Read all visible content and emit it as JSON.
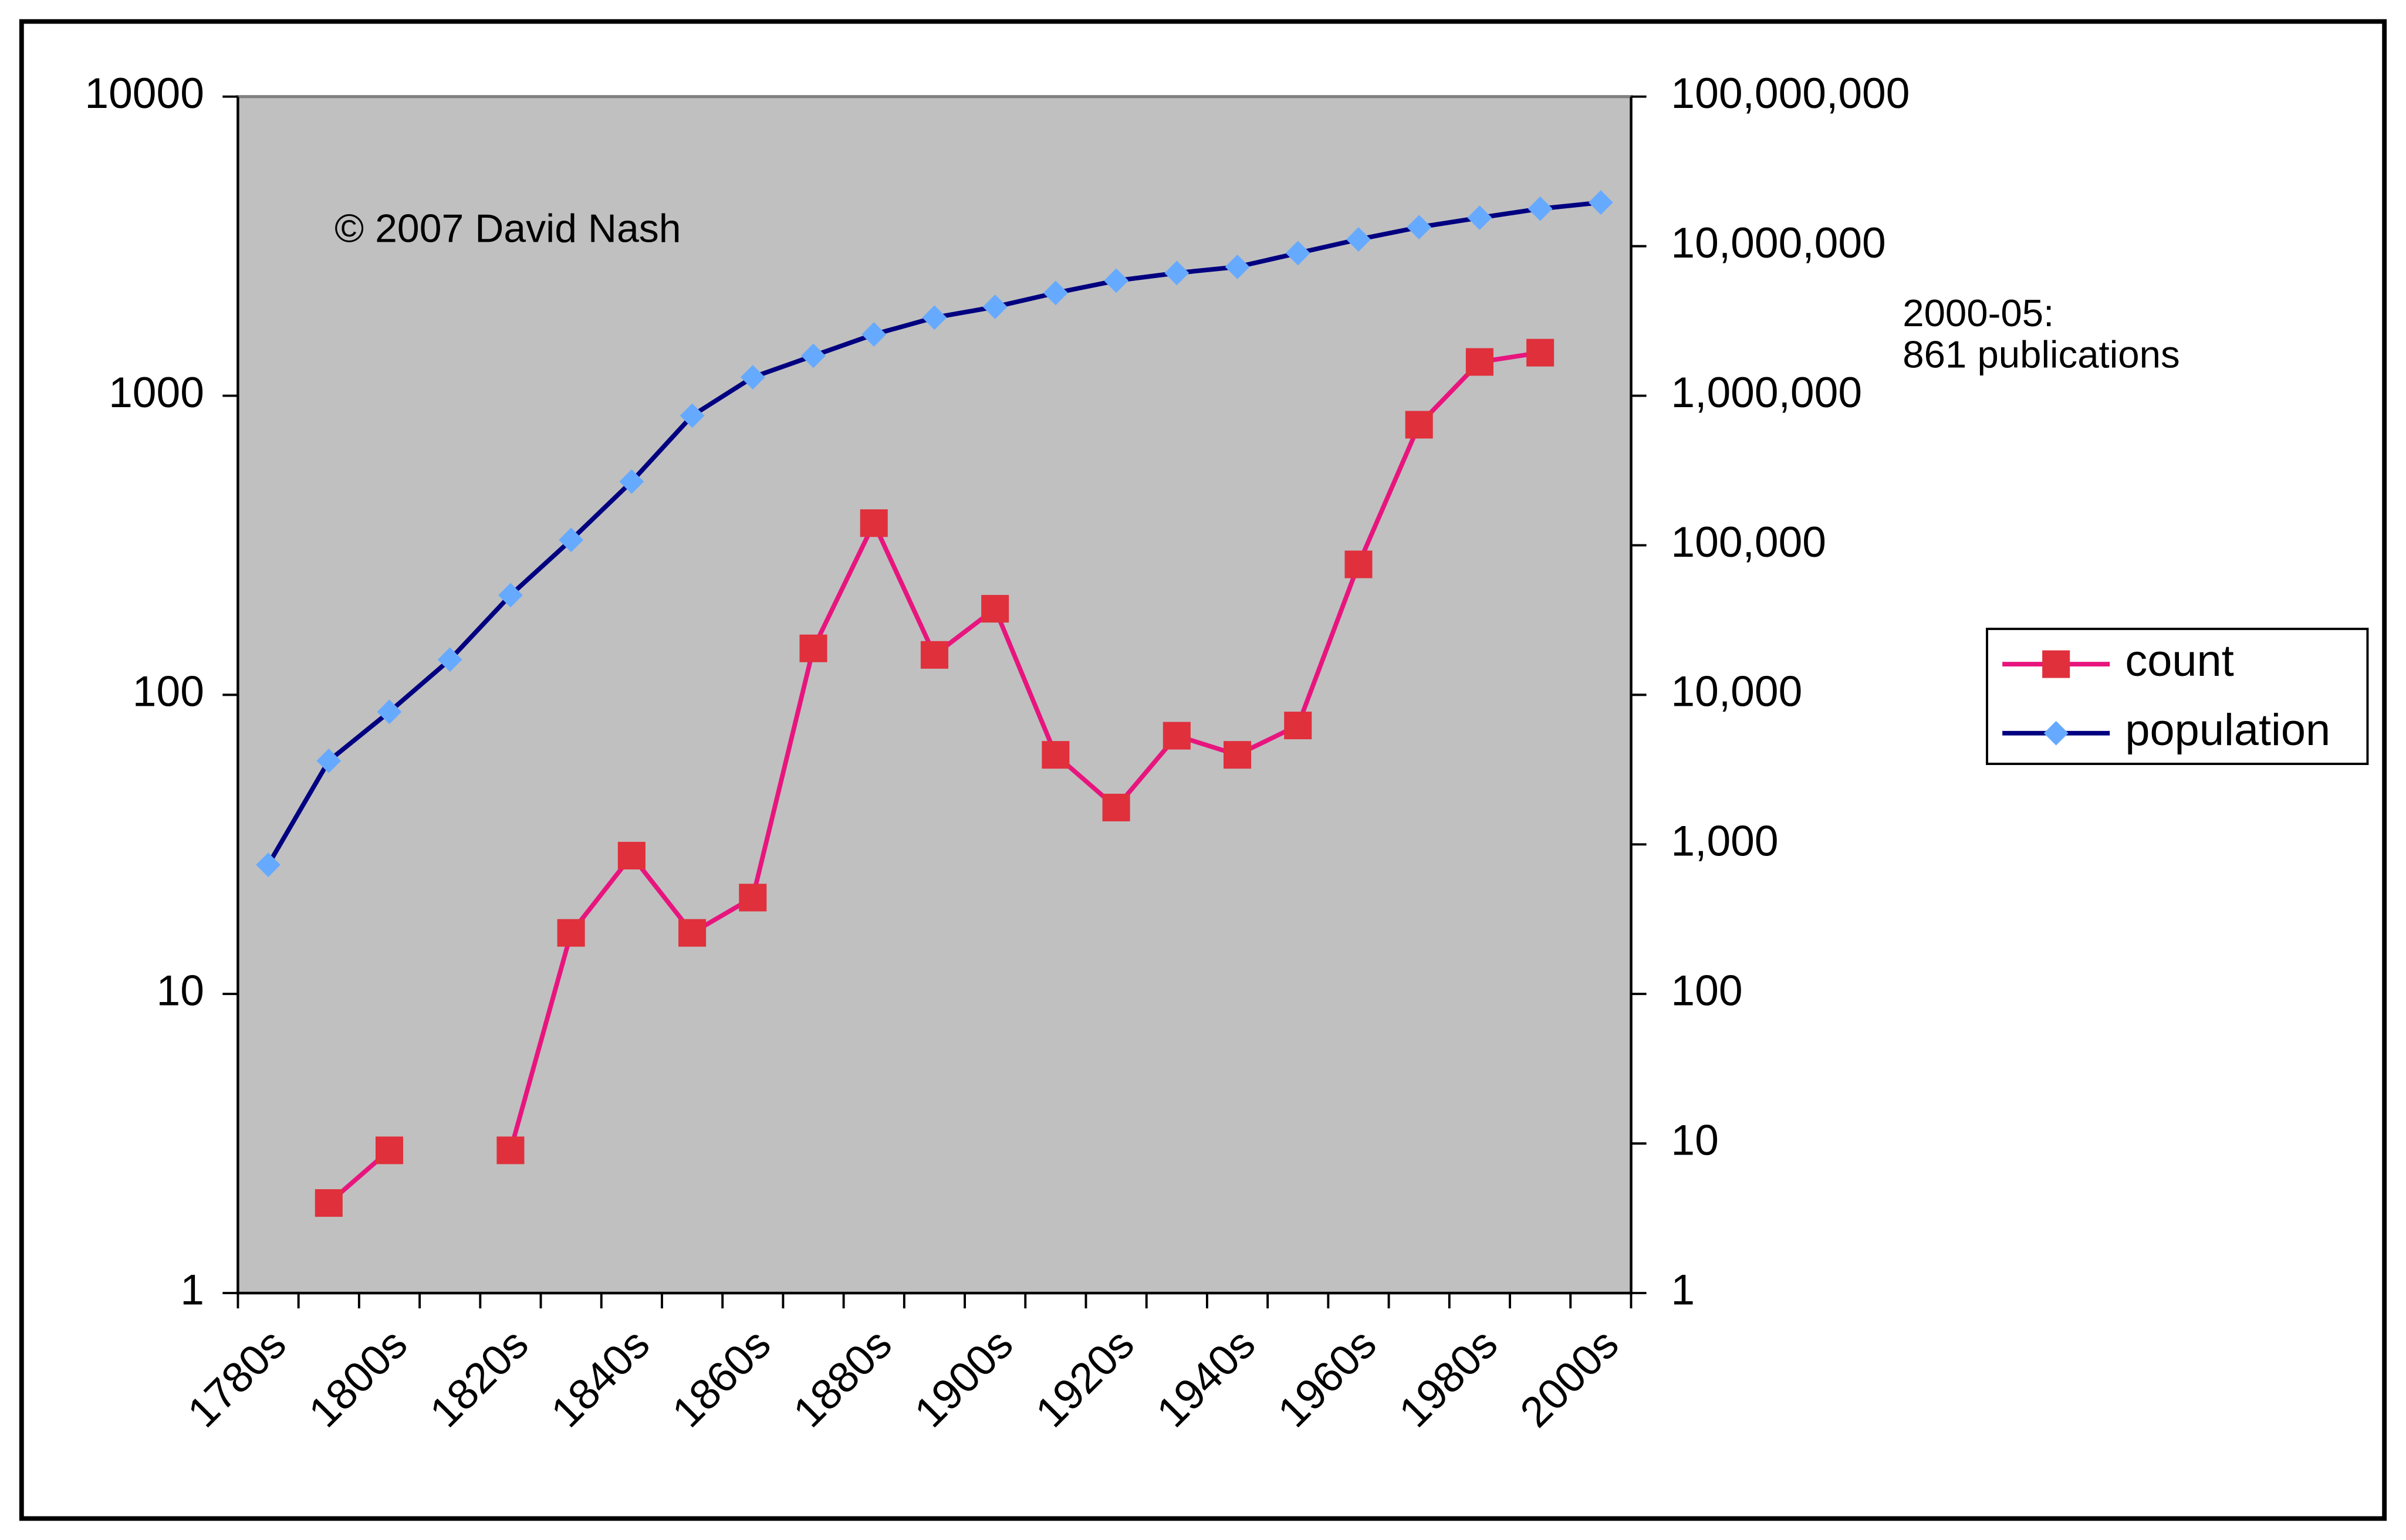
{
  "chart_data": {
    "type": "line",
    "categories": [
      "1780s",
      null,
      "1800s",
      null,
      "1820s",
      null,
      "1840s",
      null,
      "1860s",
      null,
      "1880s",
      null,
      "1900s",
      null,
      "1920s",
      null,
      "1940s",
      null,
      "1960s",
      null,
      "1980s",
      null,
      "2000s"
    ],
    "series": [
      {
        "name": "count",
        "color": "#e8157e",
        "marker_color": "#e0303c",
        "marker": "square",
        "values": [
          null,
          2,
          3,
          null,
          3,
          16,
          29,
          16,
          21,
          143,
          375,
          136,
          194,
          63,
          42,
          73,
          63,
          79,
          273,
          800,
          1297,
          1393,
          null
        ]
      },
      {
        "name": "population",
        "color": "#000080",
        "marker_color": "#66aaff",
        "marker": "diamond",
        "axis": "y2",
        "values": [
          730,
          3620,
          7700,
          17200,
          46400,
          108600,
          266700,
          736000,
          1330000,
          1850000,
          2570000,
          3330000,
          3930000,
          4870000,
          5880000,
          6620000,
          7270000,
          8990000,
          11100000,
          13400000,
          15500000,
          17800000,
          19600000
        ]
      }
    ],
    "ylim": [
      1,
      10000
    ],
    "ylog": true,
    "yticks": [
      1,
      10,
      100,
      1000,
      10000
    ],
    "y2lim": [
      1,
      100000000
    ],
    "y2log": true,
    "y2ticks": [
      1,
      10,
      100,
      {
        "value": 1000,
        "label": "1,000"
      },
      {
        "value": 10000,
        "label": "10,000"
      },
      {
        "value": 100000,
        "label": "100,000"
      },
      {
        "value": 1000000,
        "label": "1,000,000"
      },
      {
        "value": 10000000,
        "label": "10,000,000"
      },
      {
        "value": 100000000,
        "label": "100,000,000"
      }
    ],
    "annotations": [
      "© 2007 David Nash",
      [
        "2000-05:",
        "861 publications"
      ]
    ],
    "legend": "right",
    "plot_background": "#c0c0c0"
  }
}
